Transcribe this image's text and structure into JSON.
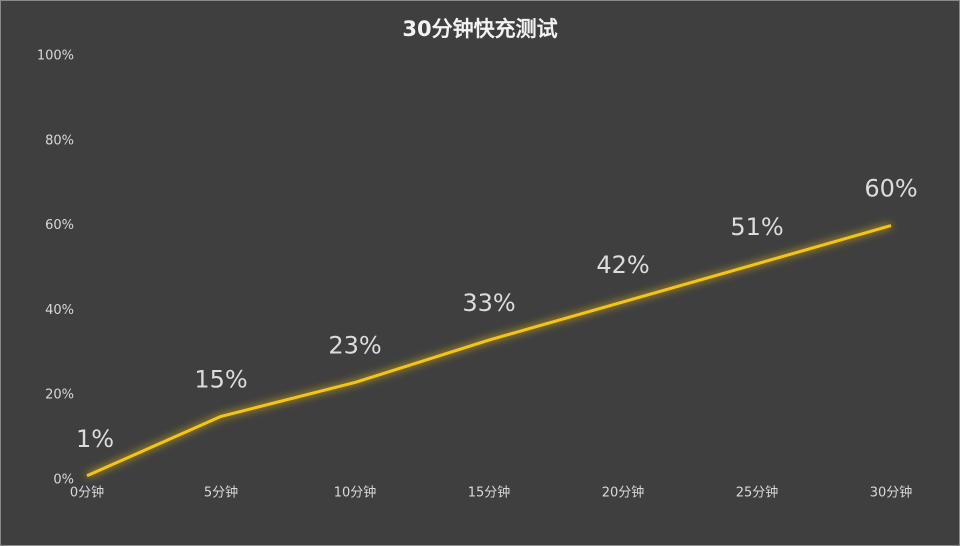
{
  "chart_data": {
    "type": "line",
    "title": "30分钟快充测试",
    "categories": [
      "0分钟",
      "5分钟",
      "10分钟",
      "15分钟",
      "20分钟",
      "25分钟",
      "30分钟"
    ],
    "values": [
      1,
      15,
      23,
      33,
      42,
      51,
      60
    ],
    "value_labels": [
      "1%",
      "15%",
      "23%",
      "33%",
      "42%",
      "51%",
      "60%"
    ],
    "color": "#f5c518",
    "ylim": [
      0,
      100
    ],
    "yticks": [
      {
        "value": 0,
        "label": "0%"
      },
      {
        "value": 20,
        "label": "20%"
      },
      {
        "value": 40,
        "label": "40%"
      },
      {
        "value": 60,
        "label": "60%"
      },
      {
        "value": 80,
        "label": "80%"
      },
      {
        "value": 100,
        "label": "100%"
      }
    ]
  }
}
